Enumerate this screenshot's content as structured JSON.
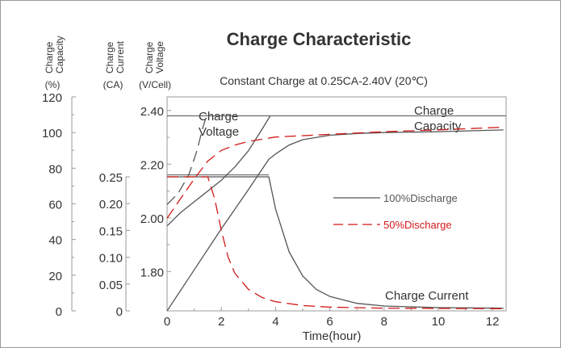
{
  "chart_data": {
    "type": "line",
    "title": "Charge Characteristic",
    "subtitle": "Constant Charge at 0.25CA-2.40V  (20℃)",
    "xlabel": "Time(hour)",
    "xlim": [
      0,
      12.5
    ],
    "xticks": [
      "0",
      "2",
      "4",
      "6",
      "8",
      "10",
      "12"
    ],
    "axes": {
      "capacity": {
        "label_lines": [
          "Charge",
          "Capacity"
        ],
        "unit": "(%)",
        "range": [
          0,
          120
        ],
        "ticks": [
          "0",
          "20",
          "40",
          "60",
          "80",
          "100",
          "120"
        ]
      },
      "current": {
        "label_lines": [
          "Charge",
          "Current"
        ],
        "unit": "(CA)",
        "range": [
          0,
          0.25
        ],
        "ticks": [
          "0",
          "0.05",
          "0.10",
          "0.15",
          "0.20",
          "0.25"
        ]
      },
      "voltage": {
        "label_lines": [
          "Charge",
          "Voltage"
        ],
        "unit": "(V/Cell)",
        "range": [
          1.6534,
          2.4508
        ],
        "ticks": [
          "1.80",
          "2.00",
          "2.20",
          "2.40"
        ]
      }
    },
    "grid": false,
    "legend_position": "right",
    "legend": [
      {
        "label": "100%Discharge",
        "color": "#555555",
        "dash": "solid"
      },
      {
        "label": "50%Discharge",
        "color": "#d11919",
        "dash": "dashed"
      }
    ],
    "annotations": {
      "charge_voltage": [
        "Charge",
        "Voltage"
      ],
      "charge_capacity": [
        "Charge",
        "Capacity"
      ],
      "charge_current": "Charge Current"
    },
    "reference_lines": {
      "voltage": [
        2.38,
        2.16
      ]
    },
    "series": [
      {
        "group": "100%Discharge",
        "quantity": "Charge Voltage",
        "axis": "voltage",
        "color": "#555555",
        "dash": "solid",
        "points": [
          [
            0,
            1.97
          ],
          [
            0.5,
            2.02
          ],
          [
            1,
            2.06
          ],
          [
            1.5,
            2.1
          ],
          [
            2,
            2.14
          ],
          [
            2.5,
            2.19
          ],
          [
            3,
            2.25
          ],
          [
            3.5,
            2.33
          ],
          [
            3.8,
            2.38
          ]
        ]
      },
      {
        "group": "100%Discharge",
        "quantity": "Charge Capacity",
        "axis": "capacity",
        "color": "#555555",
        "dash": "solid",
        "points": [
          [
            0,
            0
          ],
          [
            1,
            23
          ],
          [
            2,
            46
          ],
          [
            3,
            68
          ],
          [
            3.75,
            85
          ],
          [
            4,
            88
          ],
          [
            4.5,
            93
          ],
          [
            5,
            96
          ],
          [
            6,
            98.5
          ],
          [
            7,
            99.5
          ],
          [
            8,
            100
          ],
          [
            10,
            100.5
          ],
          [
            12.4,
            101.5
          ]
        ]
      },
      {
        "group": "100%Discharge",
        "quantity": "Charge Current",
        "axis": "current",
        "color": "#555555",
        "dash": "solid",
        "points": [
          [
            0,
            0.25
          ],
          [
            3.75,
            0.25
          ],
          [
            4,
            0.19
          ],
          [
            4.5,
            0.11
          ],
          [
            5,
            0.065
          ],
          [
            5.5,
            0.04
          ],
          [
            6,
            0.027
          ],
          [
            7,
            0.014
          ],
          [
            8,
            0.009
          ],
          [
            10,
            0.006
          ],
          [
            12.4,
            0.005
          ]
        ]
      },
      {
        "group": "50%Discharge",
        "quantity": "Charge Voltage",
        "axis": "voltage",
        "color": "#555555",
        "dash": "dashed",
        "points": [
          [
            0,
            2.05
          ],
          [
            0.4,
            2.09
          ],
          [
            0.8,
            2.16
          ],
          [
            1.1,
            2.25
          ],
          [
            1.3,
            2.33
          ],
          [
            1.45,
            2.38
          ]
        ]
      },
      {
        "group": "50%Discharge",
        "quantity": "Charge Capacity",
        "axis": "capacity",
        "color": "#d11919",
        "dash": "dashed",
        "points": [
          [
            0,
            52
          ],
          [
            0.5,
            63
          ],
          [
            1,
            74
          ],
          [
            1.5,
            84
          ],
          [
            2,
            90
          ],
          [
            2.5,
            93
          ],
          [
            3,
            95
          ],
          [
            4,
            97.5
          ],
          [
            6,
            99
          ],
          [
            8,
            100.5
          ],
          [
            10,
            101.5
          ],
          [
            12.4,
            103
          ]
        ]
      },
      {
        "group": "50%Discharge",
        "quantity": "Charge Current",
        "axis": "current",
        "color": "#d11919",
        "dash": "dashed",
        "points": [
          [
            0,
            0.25
          ],
          [
            1.5,
            0.25
          ],
          [
            1.75,
            0.21
          ],
          [
            2,
            0.15
          ],
          [
            2.25,
            0.1
          ],
          [
            2.5,
            0.07
          ],
          [
            3,
            0.04
          ],
          [
            3.5,
            0.025
          ],
          [
            4,
            0.017
          ],
          [
            5,
            0.01
          ],
          [
            6,
            0.007
          ],
          [
            8,
            0.005
          ],
          [
            12.4,
            0.004
          ]
        ]
      }
    ]
  }
}
